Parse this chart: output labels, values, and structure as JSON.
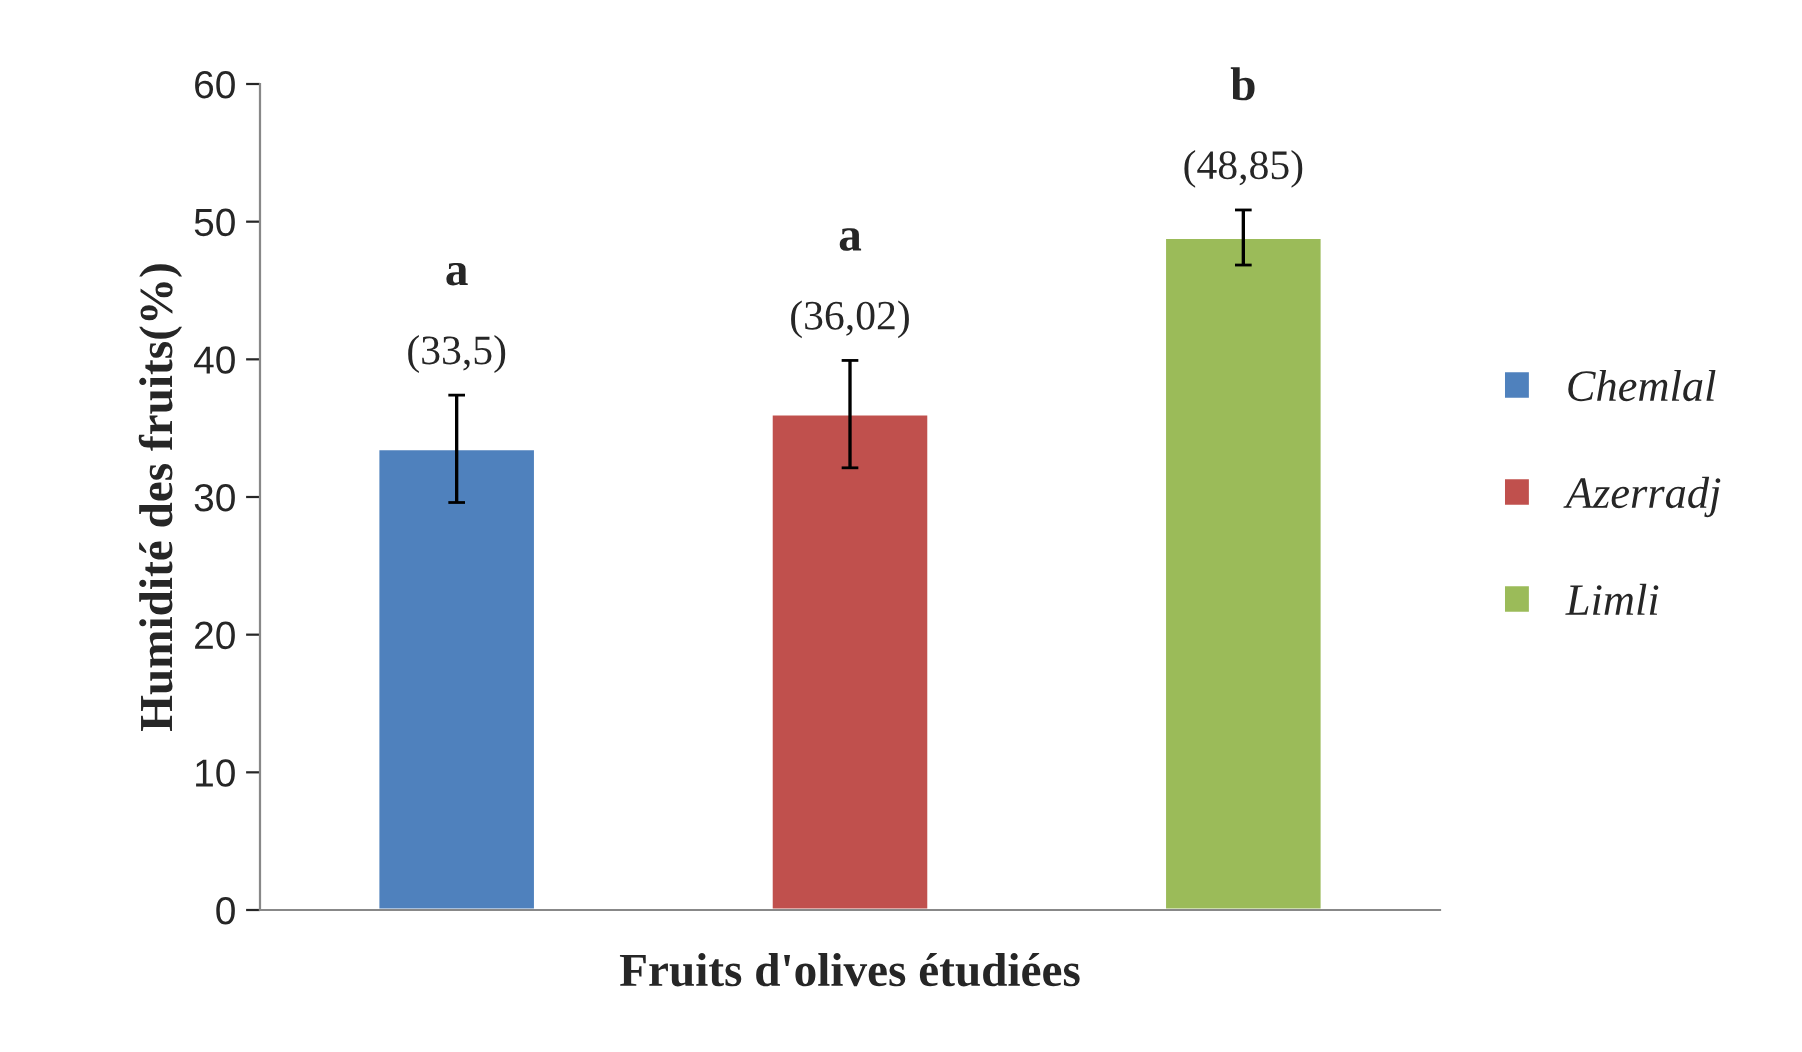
{
  "chart_data": {
    "type": "bar",
    "xlabel": "Fruits d'olives étudiées",
    "ylabel": "Humidité des fruits(%)",
    "categories": [
      null,
      null,
      null
    ],
    "series": [
      {
        "name": "Chemlal",
        "color": "#4f81bd",
        "values": [
          33.5,
          null,
          null
        ],
        "errors": [
          3.9,
          null,
          null
        ],
        "value_labels": [
          "(33,5)",
          null,
          null
        ]
      },
      {
        "name": "Azerradj",
        "color": "#c0504d",
        "values": [
          null,
          36.02,
          null
        ],
        "errors": [
          null,
          3.9,
          null
        ],
        "value_labels": [
          null,
          "(36,02)",
          null
        ]
      },
      {
        "name": "Limli",
        "color": "#9bbb59",
        "values": [
          null,
          null,
          48.85
        ],
        "errors": [
          null,
          null,
          2.0
        ],
        "value_labels": [
          null,
          null,
          "(48,85)"
        ]
      }
    ],
    "annotations": [
      "a",
      "a",
      "b"
    ],
    "ylim": [
      0,
      60
    ],
    "yticks": [
      0,
      10,
      20,
      30,
      40,
      50,
      60
    ],
    "grid": false,
    "legend": "right"
  }
}
